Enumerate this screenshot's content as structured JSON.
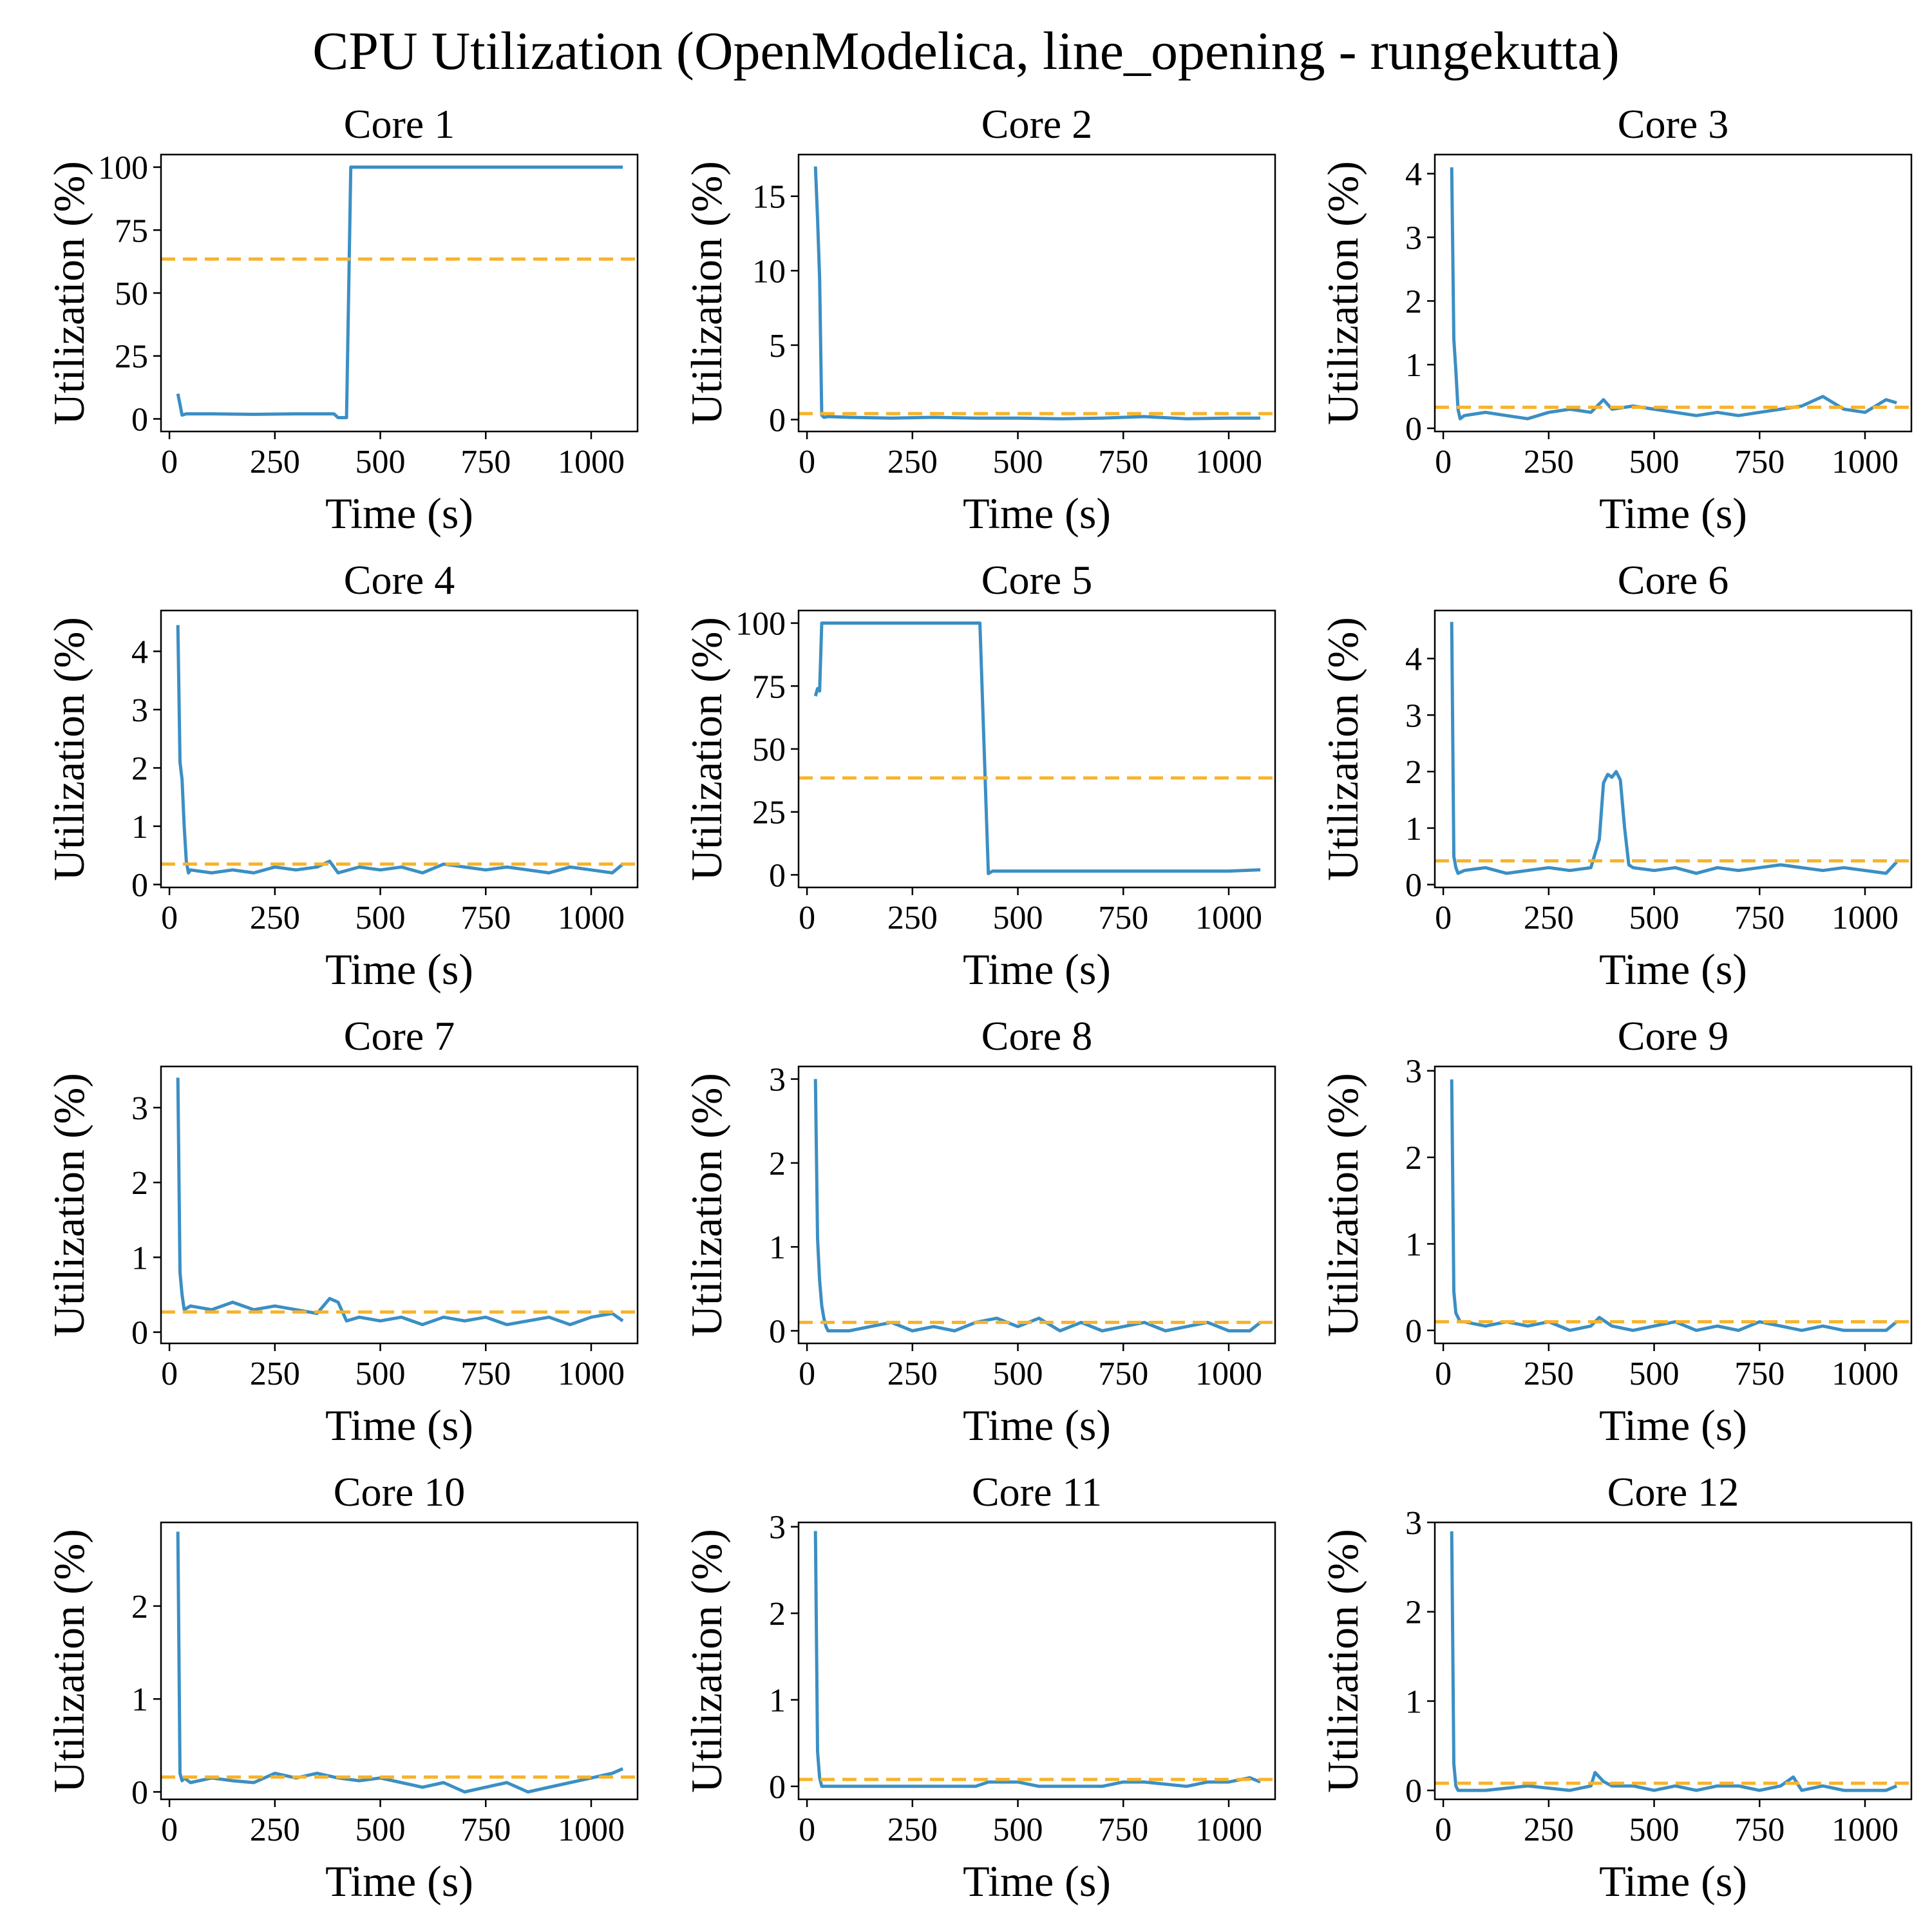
{
  "figure": {
    "title": "CPU Utilization (OpenModelica, line_opening - rungekutta)",
    "colors": {
      "series": "#3b8fc4",
      "mean": "#f7b32b",
      "axes": "#000000"
    }
  },
  "chart_data": [
    {
      "type": "line",
      "title": "Core 1",
      "xlabel": "Time (s)",
      "ylabel": "Utilization (%)",
      "xlim": [
        -20,
        1110
      ],
      "ylim": [
        -5,
        105
      ],
      "xticks": [
        0,
        250,
        500,
        750,
        1000
      ],
      "yticks": [
        0,
        25,
        50,
        75,
        100
      ],
      "mean": 63.5,
      "series": [
        {
          "x": [
            20,
            30,
            40,
            100,
            200,
            300,
            390,
            400,
            420,
            430,
            600,
            800,
            1075
          ],
          "y": [
            10,
            1.5,
            2,
            2,
            1.8,
            2,
            2,
            0.5,
            0.5,
            100,
            100,
            100,
            100
          ]
        }
      ]
    },
    {
      "type": "line",
      "title": "Core 2",
      "xlabel": "Time (s)",
      "ylabel": "Utilization (%)",
      "xlim": [
        -20,
        1110
      ],
      "ylim": [
        -0.8,
        17.8
      ],
      "xticks": [
        0,
        250,
        500,
        750,
        1000
      ],
      "yticks": [
        0,
        5,
        10,
        15
      ],
      "mean": 0.4,
      "series": [
        {
          "x": [
            20,
            25,
            30,
            35,
            40,
            50,
            100,
            200,
            300,
            400,
            500,
            600,
            700,
            800,
            900,
            1000,
            1075
          ],
          "y": [
            17,
            13.5,
            9.5,
            0.3,
            0.15,
            0.2,
            0.15,
            0.1,
            0.15,
            0.1,
            0.1,
            0.05,
            0.1,
            0.2,
            0.05,
            0.1,
            0.1
          ]
        }
      ]
    },
    {
      "type": "line",
      "title": "Core 3",
      "xlabel": "Time (s)",
      "ylabel": "Utilization (%)",
      "xlim": [
        -20,
        1110
      ],
      "ylim": [
        -0.05,
        4.3
      ],
      "xticks": [
        0,
        250,
        500,
        750,
        1000
      ],
      "yticks": [
        0,
        1,
        2,
        3,
        4
      ],
      "mean": 0.33,
      "series": [
        {
          "x": [
            20,
            25,
            30,
            35,
            40,
            50,
            100,
            150,
            200,
            250,
            300,
            350,
            380,
            400,
            450,
            500,
            550,
            600,
            650,
            700,
            750,
            800,
            850,
            900,
            950,
            1000,
            1050,
            1075
          ],
          "y": [
            4.1,
            1.4,
            0.9,
            0.3,
            0.15,
            0.2,
            0.25,
            0.2,
            0.15,
            0.25,
            0.3,
            0.25,
            0.45,
            0.3,
            0.35,
            0.3,
            0.25,
            0.2,
            0.25,
            0.2,
            0.25,
            0.3,
            0.35,
            0.5,
            0.3,
            0.25,
            0.45,
            0.4
          ]
        }
      ]
    },
    {
      "type": "line",
      "title": "Core 4",
      "xlabel": "Time (s)",
      "ylabel": "Utilization (%)",
      "xlim": [
        -20,
        1110
      ],
      "ylim": [
        -0.05,
        4.7
      ],
      "xticks": [
        0,
        250,
        500,
        750,
        1000
      ],
      "yticks": [
        0,
        1,
        2,
        3,
        4
      ],
      "mean": 0.35,
      "series": [
        {
          "x": [
            20,
            25,
            30,
            35,
            40,
            45,
            50,
            100,
            150,
            200,
            250,
            300,
            350,
            380,
            400,
            450,
            500,
            550,
            600,
            650,
            700,
            750,
            800,
            850,
            900,
            950,
            1000,
            1050,
            1075
          ],
          "y": [
            4.45,
            2.1,
            1.8,
            1.0,
            0.4,
            0.2,
            0.25,
            0.2,
            0.25,
            0.2,
            0.3,
            0.25,
            0.3,
            0.4,
            0.2,
            0.3,
            0.25,
            0.3,
            0.2,
            0.35,
            0.3,
            0.25,
            0.3,
            0.25,
            0.2,
            0.3,
            0.25,
            0.2,
            0.35
          ]
        }
      ]
    },
    {
      "type": "line",
      "title": "Core 5",
      "xlabel": "Time (s)",
      "ylabel": "Utilization (%)",
      "xlim": [
        -20,
        1110
      ],
      "ylim": [
        -5,
        105
      ],
      "xticks": [
        0,
        250,
        500,
        750,
        1000
      ],
      "yticks": [
        0,
        25,
        50,
        75,
        100
      ],
      "mean": 38.5,
      "series": [
        {
          "x": [
            20,
            25,
            30,
            35,
            100,
            200,
            300,
            410,
            430,
            440,
            500,
            600,
            800,
            1000,
            1075
          ],
          "y": [
            71,
            74,
            73,
            100,
            100,
            100,
            100,
            100,
            0.5,
            1.5,
            1.5,
            1.5,
            1.5,
            1.5,
            2
          ]
        }
      ]
    },
    {
      "type": "line",
      "title": "Core 6",
      "xlabel": "Time (s)",
      "ylabel": "Utilization (%)",
      "xlim": [
        -20,
        1110
      ],
      "ylim": [
        -0.05,
        4.85
      ],
      "xticks": [
        0,
        250,
        500,
        750,
        1000
      ],
      "yticks": [
        0,
        1,
        2,
        3,
        4
      ],
      "mean": 0.42,
      "series": [
        {
          "x": [
            20,
            25,
            30,
            35,
            50,
            100,
            150,
            200,
            250,
            300,
            350,
            370,
            380,
            390,
            400,
            410,
            420,
            430,
            440,
            450,
            500,
            550,
            600,
            650,
            700,
            750,
            800,
            850,
            900,
            950,
            1000,
            1050,
            1075
          ],
          "y": [
            4.65,
            0.5,
            0.3,
            0.2,
            0.25,
            0.3,
            0.2,
            0.25,
            0.3,
            0.25,
            0.3,
            0.8,
            1.8,
            1.95,
            1.9,
            2.0,
            1.85,
            1.0,
            0.35,
            0.3,
            0.25,
            0.3,
            0.2,
            0.3,
            0.25,
            0.3,
            0.35,
            0.3,
            0.25,
            0.3,
            0.25,
            0.2,
            0.4
          ]
        }
      ]
    },
    {
      "type": "line",
      "title": "Core 7",
      "xlabel": "Time (s)",
      "ylabel": "Utilization (%)",
      "xlim": [
        -20,
        1110
      ],
      "ylim": [
        -0.15,
        3.55
      ],
      "xticks": [
        0,
        250,
        500,
        750,
        1000
      ],
      "yticks": [
        0,
        1,
        2,
        3
      ],
      "mean": 0.27,
      "series": [
        {
          "x": [
            20,
            25,
            30,
            35,
            50,
            100,
            150,
            200,
            250,
            300,
            350,
            380,
            400,
            420,
            450,
            500,
            550,
            600,
            650,
            700,
            750,
            800,
            850,
            900,
            950,
            1000,
            1050,
            1075
          ],
          "y": [
            3.4,
            0.8,
            0.5,
            0.3,
            0.35,
            0.3,
            0.4,
            0.3,
            0.35,
            0.3,
            0.25,
            0.45,
            0.4,
            0.15,
            0.2,
            0.15,
            0.2,
            0.1,
            0.2,
            0.15,
            0.2,
            0.1,
            0.15,
            0.2,
            0.1,
            0.2,
            0.25,
            0.15
          ]
        }
      ]
    },
    {
      "type": "line",
      "title": "Core 8",
      "xlabel": "Time (s)",
      "ylabel": "Utilization (%)",
      "xlim": [
        -20,
        1110
      ],
      "ylim": [
        -0.15,
        3.15
      ],
      "xticks": [
        0,
        250,
        500,
        750,
        1000
      ],
      "yticks": [
        0,
        1,
        2,
        3
      ],
      "mean": 0.1,
      "series": [
        {
          "x": [
            20,
            25,
            30,
            35,
            40,
            45,
            50,
            100,
            150,
            200,
            250,
            300,
            350,
            400,
            450,
            500,
            550,
            600,
            650,
            700,
            750,
            800,
            850,
            900,
            950,
            1000,
            1050,
            1075
          ],
          "y": [
            3.0,
            1.1,
            0.6,
            0.3,
            0.15,
            0.05,
            0,
            0,
            0.05,
            0.1,
            0,
            0.05,
            0,
            0.1,
            0.15,
            0.05,
            0.15,
            0,
            0.1,
            0,
            0.05,
            0.1,
            0,
            0.05,
            0.1,
            0,
            0,
            0.1
          ]
        }
      ]
    },
    {
      "type": "line",
      "title": "Core 9",
      "xlabel": "Time (s)",
      "ylabel": "Utilization (%)",
      "xlim": [
        -20,
        1110
      ],
      "ylim": [
        -0.15,
        3.05
      ],
      "xticks": [
        0,
        250,
        500,
        750,
        1000
      ],
      "yticks": [
        0,
        1,
        2,
        3
      ],
      "mean": 0.1,
      "series": [
        {
          "x": [
            20,
            25,
            30,
            35,
            40,
            50,
            100,
            150,
            200,
            250,
            300,
            350,
            370,
            400,
            450,
            500,
            550,
            600,
            650,
            700,
            750,
            800,
            850,
            900,
            950,
            1000,
            1050,
            1075
          ],
          "y": [
            2.9,
            0.45,
            0.2,
            0.15,
            0.1,
            0.1,
            0.05,
            0.1,
            0.05,
            0.1,
            0,
            0.05,
            0.15,
            0.05,
            0,
            0.05,
            0.1,
            0,
            0.05,
            0,
            0.1,
            0.05,
            0,
            0.05,
            0,
            0,
            0,
            0.1
          ]
        }
      ]
    },
    {
      "type": "line",
      "title": "Core 10",
      "xlabel": "Time (s)",
      "ylabel": "Utilization (%)",
      "xlim": [
        -20,
        1110
      ],
      "ylim": [
        -0.08,
        2.9
      ],
      "xticks": [
        0,
        250,
        500,
        750,
        1000
      ],
      "yticks": [
        0,
        1,
        2
      ],
      "mean": 0.16,
      "series": [
        {
          "x": [
            20,
            25,
            30,
            35,
            50,
            100,
            150,
            200,
            250,
            300,
            350,
            400,
            450,
            500,
            550,
            600,
            650,
            700,
            750,
            800,
            850,
            900,
            950,
            1000,
            1050,
            1075
          ],
          "y": [
            2.8,
            0.2,
            0.12,
            0.15,
            0.1,
            0.15,
            0.12,
            0.1,
            0.2,
            0.15,
            0.2,
            0.15,
            0.12,
            0.15,
            0.1,
            0.05,
            0.1,
            0,
            0.05,
            0.1,
            0,
            0.05,
            0.1,
            0.15,
            0.2,
            0.25
          ]
        }
      ]
    },
    {
      "type": "line",
      "title": "Core 11",
      "xlabel": "Time (s)",
      "ylabel": "Utilization (%)",
      "xlim": [
        -20,
        1110
      ],
      "ylim": [
        -0.15,
        3.05
      ],
      "xticks": [
        0,
        250,
        500,
        750,
        1000
      ],
      "yticks": [
        0,
        1,
        2,
        3
      ],
      "mean": 0.08,
      "series": [
        {
          "x": [
            20,
            25,
            30,
            35,
            40,
            100,
            200,
            300,
            400,
            430,
            450,
            500,
            550,
            600,
            700,
            750,
            800,
            900,
            950,
            1000,
            1050,
            1075
          ],
          "y": [
            2.95,
            0.4,
            0.1,
            0,
            0,
            0,
            0,
            0,
            0,
            0.05,
            0.05,
            0.05,
            0,
            0,
            0,
            0.05,
            0.05,
            0,
            0.05,
            0.05,
            0.1,
            0.05
          ]
        }
      ]
    },
    {
      "type": "line",
      "title": "Core 12",
      "xlabel": "Time (s)",
      "ylabel": "Utilization (%)",
      "xlim": [
        -20,
        1110
      ],
      "ylim": [
        -0.1,
        3.0
      ],
      "xticks": [
        0,
        250,
        500,
        750,
        1000
      ],
      "yticks": [
        0,
        1,
        2,
        3
      ],
      "mean": 0.08,
      "series": [
        {
          "x": [
            20,
            25,
            30,
            35,
            40,
            100,
            200,
            300,
            350,
            360,
            380,
            400,
            450,
            500,
            550,
            600,
            650,
            700,
            750,
            800,
            830,
            850,
            900,
            950,
            1000,
            1050,
            1075
          ],
          "y": [
            2.9,
            0.3,
            0.05,
            0,
            0,
            0,
            0.05,
            0,
            0.05,
            0.2,
            0.1,
            0.05,
            0.05,
            0,
            0.05,
            0,
            0.05,
            0.05,
            0,
            0.05,
            0.15,
            0,
            0.05,
            0,
            0,
            0,
            0.05
          ]
        }
      ]
    }
  ]
}
